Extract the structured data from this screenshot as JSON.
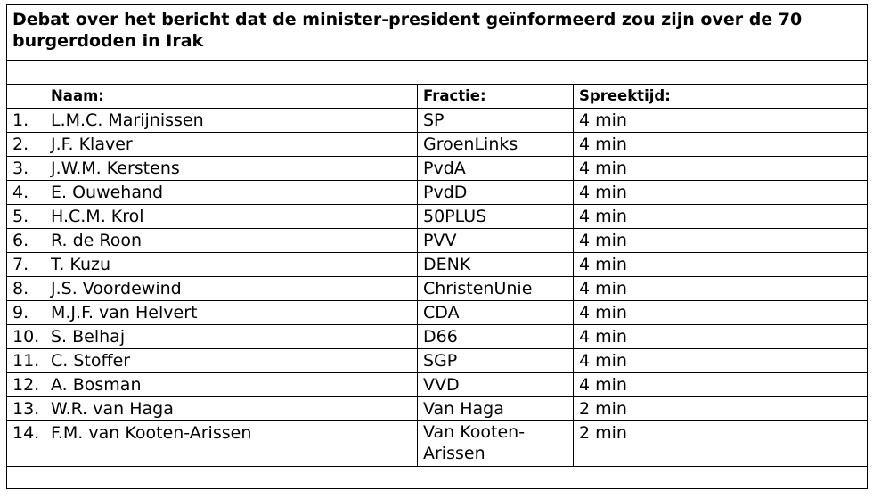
{
  "title": "Debat over het bericht dat de minister-president geïnformeerd zou zijn over de 70 burgerdoden in Irak",
  "headers": {
    "name": "Naam:",
    "party": "Fractie:",
    "time": "Spreektijd:"
  },
  "rows": [
    {
      "num": "1.",
      "name": "L.M.C. Marijnissen",
      "party": "SP",
      "time": "4 min"
    },
    {
      "num": "2.",
      "name": "J.F. Klaver",
      "party": "GroenLinks",
      "time": "4 min"
    },
    {
      "num": "3.",
      "name": "J.W.M. Kerstens",
      "party": "PvdA",
      "time": "4 min"
    },
    {
      "num": "4.",
      "name": "E. Ouwehand",
      "party": "PvdD",
      "time": "4 min"
    },
    {
      "num": "5.",
      "name": "H.C.M. Krol",
      "party": "50PLUS",
      "time": "4 min"
    },
    {
      "num": "6.",
      "name": "R. de Roon",
      "party": "PVV",
      "time": "4 min"
    },
    {
      "num": "7.",
      "name": "T. Kuzu",
      "party": "DENK",
      "time": "4 min"
    },
    {
      "num": "8.",
      "name": "J.S. Voordewind",
      "party": "ChristenUnie",
      "time": "4 min"
    },
    {
      "num": "9.",
      "name": "M.J.F. van Helvert",
      "party": "CDA",
      "time": "4 min"
    },
    {
      "num": "10.",
      "name": "S. Belhaj",
      "party": "D66",
      "time": "4 min"
    },
    {
      "num": "11.",
      "name": "C. Stoffer",
      "party": "SGP",
      "time": "4 min"
    },
    {
      "num": "12.",
      "name": "A. Bosman",
      "party": "VVD",
      "time": "4 min"
    },
    {
      "num": "13.",
      "name": "W.R. van Haga",
      "party": "Van Haga",
      "time": "2 min"
    },
    {
      "num": "14.",
      "name": "F.M. van Kooten-Arissen",
      "party": "Van Kooten-Arissen",
      "time": "2 min"
    }
  ]
}
